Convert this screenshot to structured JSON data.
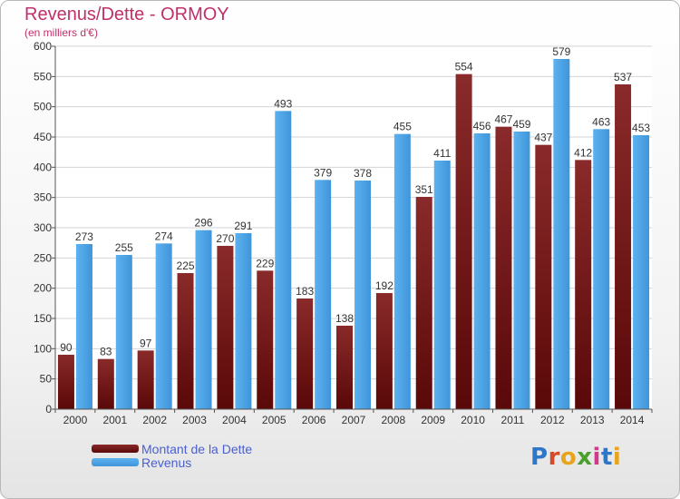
{
  "header": {
    "title": "Revenus/Dette - ORMOY",
    "subtitle": "(en milliers d'€)"
  },
  "logo": {
    "text": "Proxiti",
    "letter_colors": [
      "#2e76c8",
      "#d54a2a",
      "#e8a51a",
      "#4aa02c",
      "#d13a8a",
      "#2e76c8",
      "#e8a51a"
    ]
  },
  "chart_data": {
    "type": "bar",
    "categories": [
      "2000",
      "2001",
      "2002",
      "2003",
      "2004",
      "2005",
      "2006",
      "2007",
      "2008",
      "2009",
      "2010",
      "2011",
      "2012",
      "2013",
      "2014"
    ],
    "series": [
      {
        "name": "Montant de la Dette",
        "color": "#6e1414",
        "values": [
          90,
          83,
          97,
          225,
          270,
          229,
          183,
          138,
          192,
          351,
          554,
          467,
          437,
          412,
          537
        ]
      },
      {
        "name": "Revenus",
        "color": "#4ea6e8",
        "values": [
          273,
          255,
          274,
          296,
          291,
          493,
          379,
          378,
          455,
          411,
          456,
          459,
          579,
          463,
          453
        ]
      }
    ],
    "ylim": [
      0,
      600
    ],
    "yticks": [
      0,
      50,
      100,
      150,
      200,
      250,
      300,
      350,
      400,
      450,
      500,
      550,
      600
    ],
    "grid": true,
    "legend_position": "bottom-left"
  }
}
